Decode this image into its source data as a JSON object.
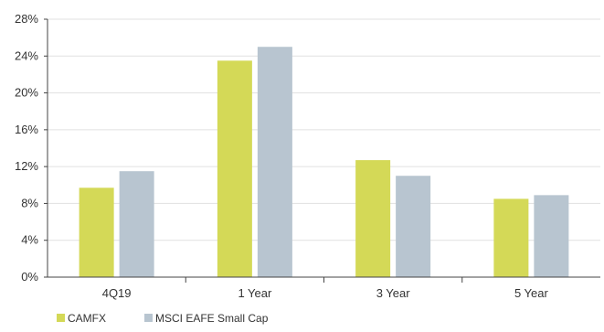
{
  "chart_data": {
    "type": "bar",
    "title": "",
    "xlabel": "",
    "ylabel": "",
    "categories": [
      "4Q19",
      "1 Year",
      "3 Year",
      "5 Year"
    ],
    "series": [
      {
        "name": "CAMFX",
        "color": "#d4d957",
        "values": [
          9.7,
          23.5,
          12.7,
          8.5
        ]
      },
      {
        "name": "MSCI EAFE Small Cap",
        "color": "#b8c5d0",
        "values": [
          11.5,
          25.0,
          11.0,
          8.9
        ]
      }
    ],
    "yticks": [
      "0%",
      "4%",
      "8%",
      "12%",
      "16%",
      "20%",
      "24%",
      "28%"
    ],
    "ylim": [
      0,
      28
    ],
    "grid": true,
    "legend_position": "bottom-left"
  }
}
